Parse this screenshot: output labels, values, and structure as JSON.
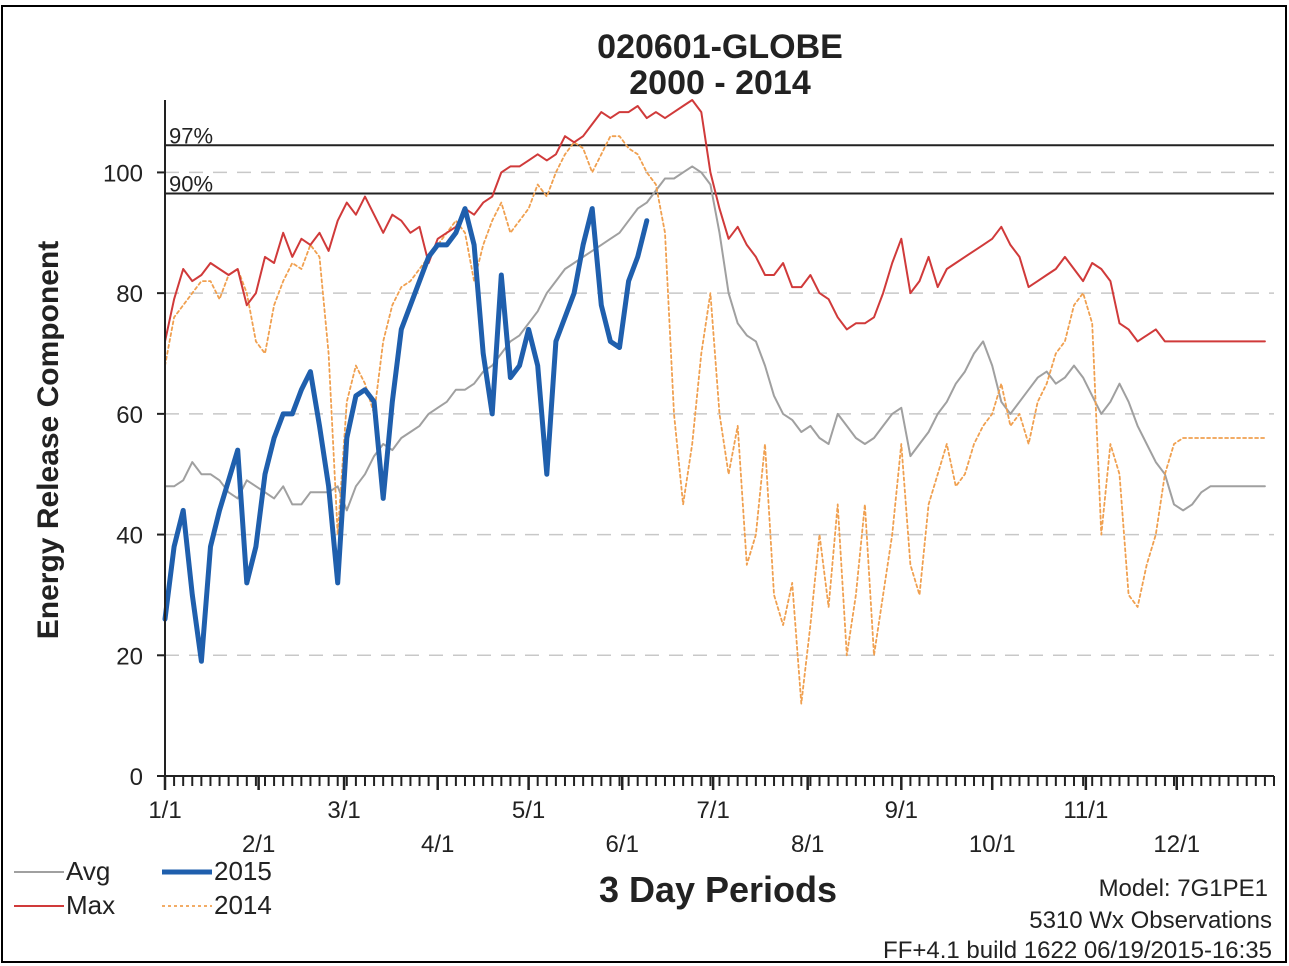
{
  "chart_data": {
    "type": "line",
    "title": "020601-GLOBE",
    "subtitle": "2000 - 2014",
    "xlabel": "3 Day Periods",
    "ylabel": "Energy Release Component",
    "ylim": [
      0,
      112
    ],
    "yticks": [
      0,
      20,
      40,
      60,
      80,
      100
    ],
    "xlim": [
      0,
      122
    ],
    "xticks": [
      {
        "label": "1/1",
        "x": 0,
        "row": 1
      },
      {
        "label": "2/1",
        "x": 10.3,
        "row": 2
      },
      {
        "label": "3/1",
        "x": 19.7,
        "row": 1
      },
      {
        "label": "4/1",
        "x": 30,
        "row": 2
      },
      {
        "label": "5/1",
        "x": 40,
        "row": 1
      },
      {
        "label": "6/1",
        "x": 50.3,
        "row": 2
      },
      {
        "label": "7/1",
        "x": 60.3,
        "row": 1
      },
      {
        "label": "8/1",
        "x": 70.7,
        "row": 2
      },
      {
        "label": "9/1",
        "x": 81,
        "row": 1
      },
      {
        "label": "10/1",
        "x": 91,
        "row": 2
      },
      {
        "label": "11/1",
        "x": 101.3,
        "row": 1
      },
      {
        "label": "12/1",
        "x": 111.3,
        "row": 2
      }
    ],
    "grid": "horizontal-dashed",
    "reference_lines": [
      {
        "label": "97%",
        "value": 104.5
      },
      {
        "label": "90%",
        "value": 96.5
      }
    ],
    "series": [
      {
        "name": "Avg",
        "color": "#a0a0a0",
        "style": "thin",
        "x": [
          0,
          1,
          2,
          3,
          4,
          5,
          6,
          7,
          8,
          9,
          10,
          11,
          12,
          13,
          14,
          15,
          16,
          17,
          18,
          19,
          20,
          21,
          22,
          23,
          24,
          25,
          26,
          27,
          28,
          29,
          30,
          31,
          32,
          33,
          34,
          35,
          36,
          37,
          38,
          39,
          40,
          41,
          42,
          43,
          44,
          45,
          46,
          47,
          48,
          49,
          50,
          51,
          52,
          53,
          54,
          55,
          56,
          57,
          58,
          59,
          60,
          61,
          62,
          63,
          64,
          65,
          66,
          67,
          68,
          69,
          70,
          71,
          72,
          73,
          74,
          75,
          76,
          77,
          78,
          79,
          80,
          81,
          82,
          83,
          84,
          85,
          86,
          87,
          88,
          89,
          90,
          91,
          92,
          93,
          94,
          95,
          96,
          97,
          98,
          99,
          100,
          101,
          102,
          103,
          104,
          105,
          106,
          107,
          108,
          109,
          110,
          111,
          112,
          113,
          114,
          115,
          116,
          117,
          118,
          119,
          120,
          121
        ],
        "values": [
          48,
          48,
          49,
          52,
          50,
          50,
          49,
          47,
          46,
          49,
          48,
          47,
          46,
          48,
          45,
          45,
          47,
          47,
          47,
          48,
          44,
          48,
          50,
          53,
          55,
          54,
          56,
          57,
          58,
          60,
          61,
          62,
          64,
          64,
          65,
          67,
          68,
          70,
          72,
          73,
          75,
          77,
          80,
          82,
          84,
          85,
          86,
          87,
          88,
          89,
          90,
          92,
          94,
          95,
          97,
          99,
          99,
          100,
          101,
          100,
          98,
          90,
          80,
          75,
          73,
          72,
          68,
          63,
          60,
          59,
          57,
          58,
          56,
          55,
          60,
          58,
          56,
          55,
          56,
          58,
          60,
          61,
          53,
          55,
          57,
          60,
          62,
          65,
          67,
          70,
          72,
          68,
          62,
          60,
          62,
          64,
          66,
          67,
          65,
          66,
          68,
          66,
          63,
          60,
          62,
          65,
          62,
          58,
          55,
          52,
          50,
          45,
          44,
          45,
          47,
          48,
          48,
          48,
          48,
          48,
          48,
          48
        ]
      },
      {
        "name": "Max",
        "color": "#d03a3a",
        "style": "thin",
        "x": [
          0,
          1,
          2,
          3,
          4,
          5,
          6,
          7,
          8,
          9,
          10,
          11,
          12,
          13,
          14,
          15,
          16,
          17,
          18,
          19,
          20,
          21,
          22,
          23,
          24,
          25,
          26,
          27,
          28,
          29,
          30,
          31,
          32,
          33,
          34,
          35,
          36,
          37,
          38,
          39,
          40,
          41,
          42,
          43,
          44,
          45,
          46,
          47,
          48,
          49,
          50,
          51,
          52,
          53,
          54,
          55,
          56,
          57,
          58,
          59,
          60,
          61,
          62,
          63,
          64,
          65,
          66,
          67,
          68,
          69,
          70,
          71,
          72,
          73,
          74,
          75,
          76,
          77,
          78,
          79,
          80,
          81,
          82,
          83,
          84,
          85,
          86,
          87,
          88,
          89,
          90,
          91,
          92,
          93,
          94,
          95,
          96,
          97,
          98,
          99,
          100,
          101,
          102,
          103,
          104,
          105,
          106,
          107,
          108,
          109,
          110,
          111,
          112,
          113,
          114,
          115,
          116,
          117,
          118,
          119,
          120,
          121
        ],
        "values": [
          72,
          79,
          84,
          82,
          83,
          85,
          84,
          83,
          84,
          78,
          80,
          86,
          85,
          90,
          86,
          89,
          88,
          90,
          87,
          92,
          95,
          93,
          96,
          93,
          90,
          93,
          92,
          90,
          91,
          85,
          89,
          90,
          91,
          94,
          93,
          95,
          96,
          100,
          101,
          101,
          102,
          103,
          102,
          103,
          106,
          105,
          106,
          108,
          110,
          109,
          110,
          110,
          111,
          109,
          110,
          109,
          110,
          111,
          112,
          110,
          100,
          94,
          89,
          91,
          88,
          86,
          83,
          83,
          85,
          81,
          81,
          83,
          80,
          79,
          76,
          74,
          75,
          75,
          76,
          80,
          85,
          89,
          80,
          82,
          86,
          81,
          84,
          85,
          86,
          87,
          88,
          89,
          91,
          88,
          86,
          81,
          82,
          83,
          84,
          86,
          84,
          82,
          85,
          84,
          82,
          75,
          74,
          72,
          73,
          74,
          72,
          72,
          72,
          72,
          72,
          72,
          72,
          72,
          72,
          72,
          72,
          72
        ]
      },
      {
        "name": "2015",
        "color": "#1f5fad",
        "style": "thick",
        "x": [
          0,
          1,
          2,
          3,
          4,
          5,
          6,
          7,
          8,
          9,
          10,
          11,
          12,
          13,
          14,
          15,
          16,
          17,
          18,
          19,
          20,
          21,
          22,
          23,
          24,
          25,
          26,
          27,
          28,
          29,
          30,
          31,
          32,
          33,
          34,
          35,
          36,
          37,
          38,
          39,
          40,
          41,
          42,
          43,
          44,
          45,
          46,
          47,
          48,
          49,
          50,
          51,
          52,
          53,
          54,
          55,
          56,
          57
        ],
        "values": [
          26,
          38,
          44,
          30,
          19,
          38,
          44,
          49,
          54,
          32,
          38,
          50,
          56,
          60,
          60,
          64,
          67,
          58,
          48,
          32,
          56,
          63,
          64,
          62,
          46,
          62,
          74,
          78,
          82,
          86,
          88,
          88,
          90,
          94,
          88,
          70,
          60,
          83,
          66,
          68,
          74,
          68,
          50,
          72,
          76,
          80,
          88,
          94,
          78,
          72,
          71,
          82,
          86,
          92,
          null,
          null,
          null,
          null
        ]
      },
      {
        "name": "2014",
        "color": "#f0a050",
        "style": "dotted",
        "x": [
          0,
          1,
          2,
          3,
          4,
          5,
          6,
          7,
          8,
          9,
          10,
          11,
          12,
          13,
          14,
          15,
          16,
          17,
          18,
          19,
          20,
          21,
          22,
          23,
          24,
          25,
          26,
          27,
          28,
          29,
          30,
          31,
          32,
          33,
          34,
          35,
          36,
          37,
          38,
          39,
          40,
          41,
          42,
          43,
          44,
          45,
          46,
          47,
          48,
          49,
          50,
          51,
          52,
          53,
          54,
          55,
          56,
          57,
          58,
          59,
          60,
          61,
          62,
          63,
          64,
          65,
          66,
          67,
          68,
          69,
          70,
          71,
          72,
          73,
          74,
          75,
          76,
          77,
          78,
          79,
          80,
          81,
          82,
          83,
          84,
          85,
          86,
          87,
          88,
          89,
          90,
          91,
          92,
          93,
          94,
          95,
          96,
          97,
          98,
          99,
          100,
          101,
          102,
          103,
          104,
          105,
          106,
          107,
          108,
          109,
          110,
          111,
          112,
          113,
          114,
          115,
          116,
          117,
          118,
          119,
          120,
          121
        ],
        "values": [
          68,
          76,
          78,
          80,
          82,
          82,
          79,
          83,
          84,
          80,
          72,
          70,
          78,
          82,
          85,
          84,
          88,
          86,
          70,
          40,
          62,
          68,
          65,
          60,
          72,
          78,
          81,
          82,
          84,
          86,
          88,
          90,
          92,
          90,
          82,
          88,
          92,
          95,
          90,
          92,
          94,
          98,
          96,
          100,
          103,
          105,
          104,
          100,
          103,
          106,
          106,
          104,
          103,
          100,
          98,
          90,
          60,
          45,
          55,
          70,
          80,
          60,
          50,
          58,
          35,
          40,
          55,
          30,
          25,
          32,
          12,
          25,
          40,
          28,
          45,
          20,
          30,
          45,
          20,
          30,
          40,
          55,
          35,
          30,
          45,
          50,
          55,
          48,
          50,
          55,
          58,
          60,
          65,
          58,
          60,
          55,
          62,
          65,
          70,
          72,
          78,
          80,
          75,
          40,
          55,
          50,
          30,
          28,
          35,
          40,
          50,
          55,
          56,
          56,
          56,
          56,
          56,
          56,
          56,
          56,
          56,
          56
        ]
      }
    ],
    "legend": {
      "placement": "bottom-left",
      "items": [
        {
          "name": "Avg",
          "color": "#a0a0a0",
          "style": "thin"
        },
        {
          "name": "2015",
          "color": "#1f5fad",
          "style": "thick"
        },
        {
          "name": "Max",
          "color": "#d03a3a",
          "style": "thin"
        },
        {
          "name": "2014",
          "color": "#f0a050",
          "style": "dotted"
        }
      ]
    }
  },
  "footer": {
    "model": "Model: 7G1PE1",
    "observations": "5310 Wx Observations",
    "build": "FF+4.1 build 1622 06/19/2015-16:35"
  }
}
